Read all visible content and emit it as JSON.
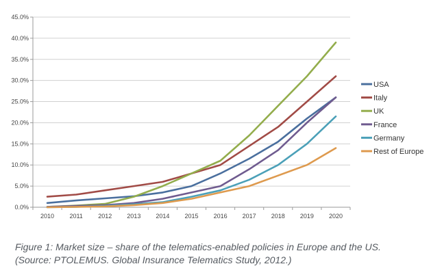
{
  "chart_data": {
    "type": "line",
    "title": "",
    "xlabel": "",
    "ylabel": "",
    "x": [
      "2010",
      "2011",
      "2012",
      "2013",
      "2014",
      "2015",
      "2016",
      "2017",
      "2018",
      "2019",
      "2020"
    ],
    "ylim": [
      0,
      45
    ],
    "yticks": [
      "0.0%",
      "5.0%",
      "10.0%",
      "15.0%",
      "20.0%",
      "25.0%",
      "30.0%",
      "35.0%",
      "40.0%",
      "45.0%"
    ],
    "grid": true,
    "legend": "right",
    "series": [
      {
        "name": "USA",
        "color": "#4a6f9e",
        "values": [
          1.0,
          1.6,
          2.1,
          2.6,
          3.5,
          5.0,
          8.0,
          11.5,
          15.5,
          21.0,
          26.0
        ]
      },
      {
        "name": "Italy",
        "color": "#a14b46",
        "values": [
          2.5,
          3.0,
          4.0,
          5.0,
          6.0,
          8.0,
          10.0,
          14.5,
          19.0,
          25.0,
          31.0
        ]
      },
      {
        "name": "UK",
        "color": "#93ad4c",
        "values": [
          0.1,
          0.4,
          0.8,
          2.5,
          5.0,
          8.0,
          11.0,
          17.0,
          24.0,
          31.0,
          39.0
        ]
      },
      {
        "name": "France",
        "color": "#6f5b8f",
        "values": [
          0.1,
          0.3,
          0.5,
          1.0,
          2.0,
          3.5,
          5.0,
          9.0,
          13.5,
          20.0,
          26.0
        ]
      },
      {
        "name": "Germany",
        "color": "#4ba0b8",
        "values": [
          0.0,
          0.1,
          0.3,
          0.7,
          1.2,
          2.5,
          4.0,
          6.5,
          10.0,
          15.0,
          21.5
        ]
      },
      {
        "name": "Rest of Europe",
        "color": "#de9a4e",
        "values": [
          0.0,
          0.1,
          0.2,
          0.5,
          1.0,
          2.0,
          3.5,
          5.0,
          7.5,
          10.0,
          14.0
        ]
      }
    ]
  },
  "caption": {
    "line1": "Figure 1: Market size – share of the telematics-enabled policies in Europe and the US.",
    "line2": "(Source:  PTOLEMUS. Global Insurance Telematics Study, 2012.)"
  }
}
